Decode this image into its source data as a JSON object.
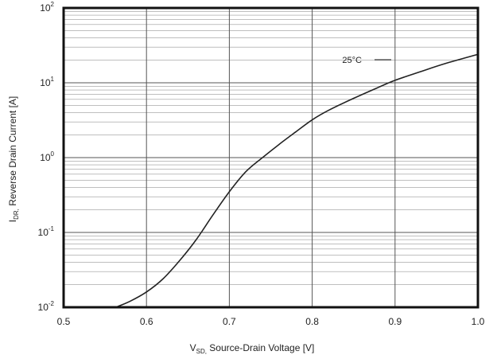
{
  "chart_data": {
    "type": "line",
    "title": "",
    "xlabel": {
      "main": "V",
      "sub": "SD,",
      "rest": " Source-Drain Voltage [V]"
    },
    "ylabel": {
      "main": "I",
      "sub": "DR,",
      "rest": " Reverse Drain Current [A]"
    },
    "xlim": [
      0.5,
      1.0
    ],
    "ylim": [
      0.01,
      100
    ],
    "yscale": "log",
    "grid": true,
    "x_ticks": [
      {
        "value": 0.5,
        "label": "0.5"
      },
      {
        "value": 0.6,
        "label": "0.6"
      },
      {
        "value": 0.7,
        "label": "0.7"
      },
      {
        "value": 0.8,
        "label": "0.8"
      },
      {
        "value": 0.9,
        "label": "0.9"
      },
      {
        "value": 1.0,
        "label": "1.0"
      }
    ],
    "y_ticks": [
      {
        "value": 0.01,
        "base": "10",
        "exp": "-2"
      },
      {
        "value": 0.1,
        "base": "10",
        "exp": "-1"
      },
      {
        "value": 1,
        "base": "10",
        "exp": "0"
      },
      {
        "value": 10,
        "base": "10",
        "exp": "1"
      },
      {
        "value": 100,
        "base": "10",
        "exp": "2"
      }
    ],
    "series": [
      {
        "x": [
          0.563,
          0.58,
          0.6,
          0.62,
          0.64,
          0.66,
          0.68,
          0.7,
          0.72,
          0.74,
          0.76,
          0.78,
          0.8,
          0.82,
          0.85,
          0.88,
          0.9,
          0.93,
          0.96,
          1.0
        ],
        "y": [
          0.01,
          0.012,
          0.016,
          0.024,
          0.042,
          0.08,
          0.17,
          0.35,
          0.65,
          1.0,
          1.5,
          2.2,
          3.2,
          4.3,
          6.2,
          8.7,
          10.8,
          14.0,
          18.0,
          24.0
        ],
        "color": "#222222"
      }
    ],
    "annotations": [
      {
        "text": "25°C"
      }
    ]
  }
}
